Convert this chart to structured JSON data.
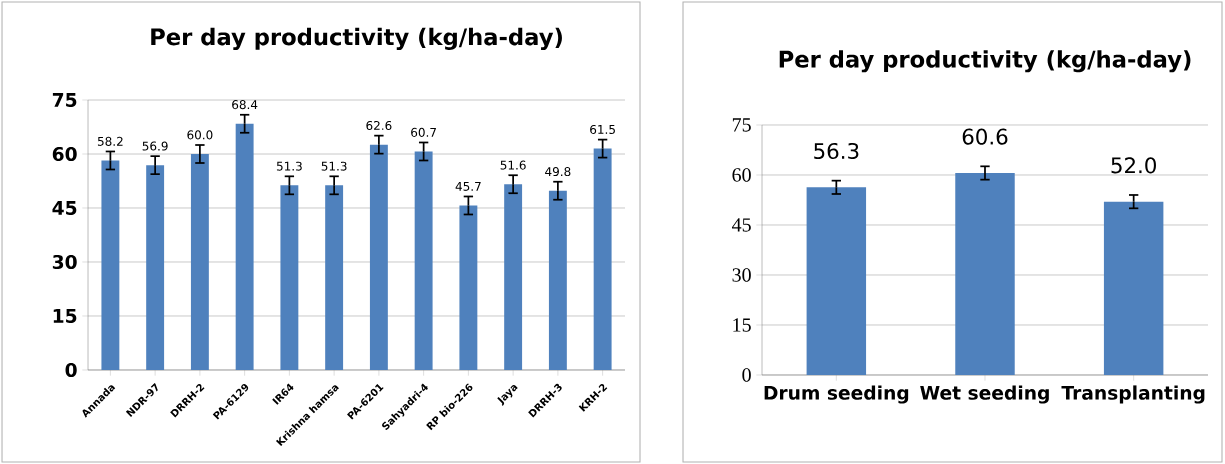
{
  "chart_data": [
    {
      "type": "bar",
      "title": "Per day productivity (kg/ha-day)",
      "categories": [
        "Annada",
        "NDR-97",
        "DRRH-2",
        "PA-6129",
        "IR64",
        "Krishna hamsa",
        "PA-6201",
        "Sahyadri-4",
        "RP bio-226",
        "Jaya",
        "DRRH-3",
        "KRH-2"
      ],
      "values": [
        58.2,
        56.9,
        60.0,
        68.4,
        51.3,
        51.3,
        62.6,
        60.7,
        45.7,
        51.6,
        49.8,
        61.5
      ],
      "errors": [
        2.5,
        2.5,
        2.5,
        2.5,
        2.5,
        2.5,
        2.5,
        2.5,
        2.5,
        2.5,
        2.5,
        2.5
      ],
      "value_labels": [
        "58.2",
        "56.9",
        "60.0",
        "68.4",
        "51.3",
        "51.3",
        "62.6",
        "60.7",
        "45.7",
        "51.6",
        "49.8",
        "61.5"
      ],
      "color": "#4f81bd",
      "ylim": [
        0,
        75
      ],
      "yticks": [
        0,
        15,
        30,
        45,
        60,
        75
      ],
      "grid": "y"
    },
    {
      "type": "bar",
      "title": "Per day productivity (kg/ha-day)",
      "categories": [
        "Drum seeding",
        "Wet seeding",
        "Transplanting"
      ],
      "values": [
        56.3,
        60.6,
        52.0
      ],
      "errors": [
        2,
        2,
        2
      ],
      "value_labels": [
        "56.3",
        "60.6",
        "52.0"
      ],
      "color": "#4f81bd",
      "ylim": [
        0,
        75
      ],
      "yticks": [
        0,
        15,
        30,
        45,
        60,
        75
      ],
      "grid": "y"
    }
  ]
}
